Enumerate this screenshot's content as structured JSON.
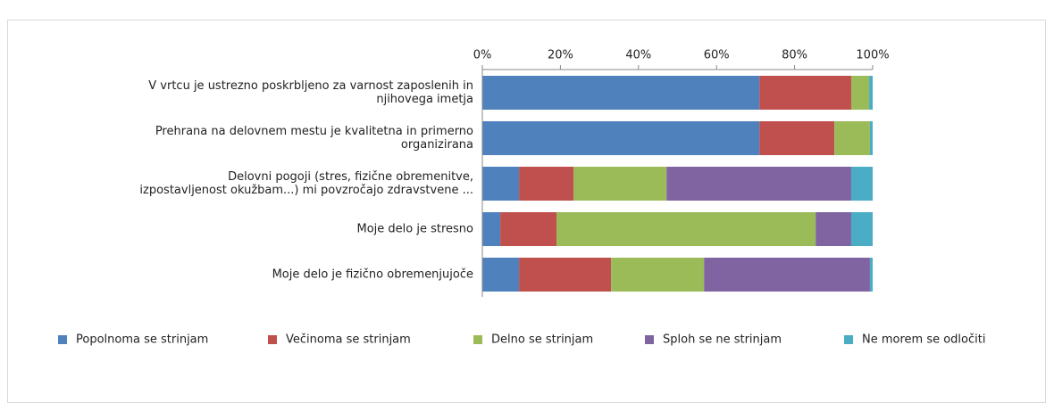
{
  "chart_data": {
    "type": "stacked-bar-horizontal",
    "categories": [
      "V vrtcu je ustrezno poskrbljeno za varnost zaposlenih in\nnjihovega imetja",
      "Prehrana na delovnem mestu je kvalitetna in primerno\norganizirana",
      "Delovni pogoji (stres, fizične obremenitve,\nizpostavljenost okužbam...) mi povzročajo zdravstvene ...",
      "Moje delo je stresno ",
      "Moje delo je fizično obremenjujoče"
    ],
    "series": [
      {
        "name": "Popolnoma se strinjam",
        "color": "#4f81bd",
        "values": [
          71,
          71,
          9.4,
          4.6,
          9.4
        ]
      },
      {
        "name": "Večinoma se strinjam",
        "color": "#c0504d",
        "values": [
          23.5,
          19.2,
          14,
          14.4,
          23.6
        ]
      },
      {
        "name": "Delno se strinjam",
        "color": "#9bbb59",
        "values": [
          4.6,
          9.1,
          23.8,
          66.4,
          23.8
        ]
      },
      {
        "name": "Sploh se ne strinjam",
        "color": "#8064a2",
        "values": [
          0,
          0,
          47.3,
          9.1,
          42.5
        ]
      },
      {
        "name": "Ne morem se odločiti",
        "color": "#4bacc6",
        "values": [
          0.9,
          0.7,
          5.5,
          5.5,
          0.7
        ]
      }
    ],
    "xlim": [
      0,
      100
    ],
    "xticks": [
      {
        "value": 0,
        "label": "0%"
      },
      {
        "value": 20,
        "label": "20%"
      },
      {
        "value": 40,
        "label": "40%"
      },
      {
        "value": 60,
        "label": "60%"
      },
      {
        "value": 80,
        "label": "80%"
      },
      {
        "value": 100,
        "label": "100%"
      }
    ],
    "legend": "bottom"
  }
}
